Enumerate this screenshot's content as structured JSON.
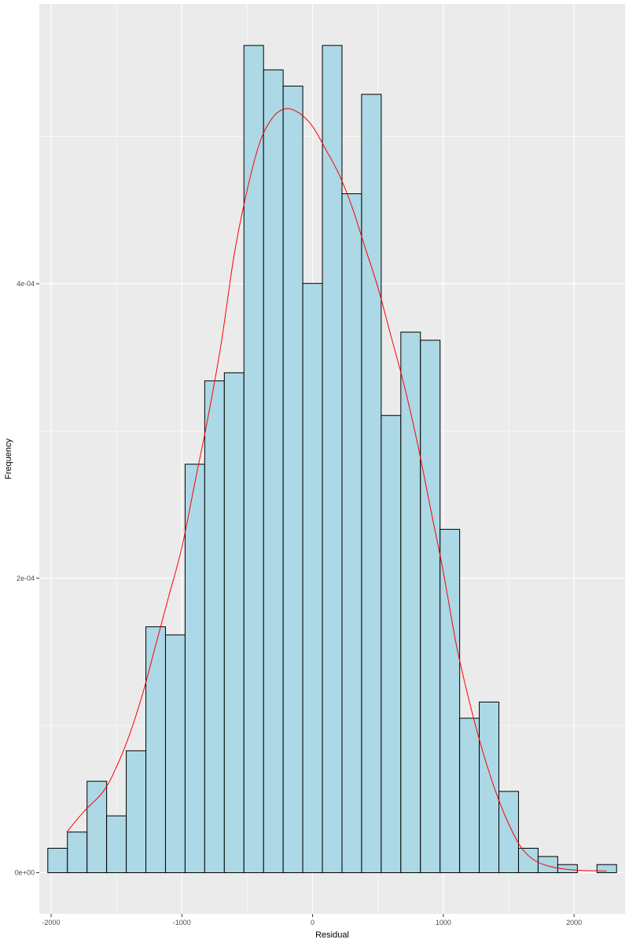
{
  "chart_data": {
    "type": "bar",
    "title": "",
    "xlabel": "Residual",
    "ylabel": "Frequency",
    "xlim": [
      -2090,
      2390
    ],
    "ylim": [
      -2.8e-05,
      0.00059
    ],
    "x_major_ticks": [
      -2000,
      -1000,
      0,
      1000,
      2000
    ],
    "x_tick_labels": [
      "-2000",
      "-1000",
      "0",
      "1000",
      "2000"
    ],
    "x_minor_ticks": [
      -1500,
      -500,
      500,
      1500
    ],
    "y_major_ticks": [
      0,
      0.0002,
      0.0004
    ],
    "y_tick_labels": [
      "0e+00",
      "2e-04",
      "4e-04"
    ],
    "y_minor_ticks": [
      0.0001,
      0.0003,
      0.0005
    ],
    "grid": true,
    "bin_width": 150,
    "bins": [
      {
        "x": -1950,
        "density": 1.66e-05
      },
      {
        "x": -1800,
        "density": 2.76e-05
      },
      {
        "x": -1650,
        "density": 6.21e-05
      },
      {
        "x": -1500,
        "density": 3.86e-05
      },
      {
        "x": -1350,
        "density": 8.28e-05
      },
      {
        "x": -1200,
        "density": 0.000167
      },
      {
        "x": -1050,
        "density": 0.0001615
      },
      {
        "x": -900,
        "density": 0.0002774
      },
      {
        "x": -750,
        "density": 0.000334
      },
      {
        "x": -600,
        "density": 0.0003395
      },
      {
        "x": -450,
        "density": 0.0005618
      },
      {
        "x": -300,
        "density": 0.0005452
      },
      {
        "x": -150,
        "density": 0.0005342
      },
      {
        "x": 0,
        "density": 0.0004002
      },
      {
        "x": 150,
        "density": 0.0005618
      },
      {
        "x": 300,
        "density": 0.0004611
      },
      {
        "x": 450,
        "density": 0.0005286
      },
      {
        "x": 600,
        "density": 0.0003105
      },
      {
        "x": 750,
        "density": 0.0003671
      },
      {
        "x": 900,
        "density": 0.0003616
      },
      {
        "x": 1050,
        "density": 0.0002332
      },
      {
        "x": 1200,
        "density": 0.0001049
      },
      {
        "x": 1350,
        "density": 0.0001159
      },
      {
        "x": 1500,
        "density": 5.52e-05
      },
      {
        "x": 1650,
        "density": 1.66e-05
      },
      {
        "x": 1800,
        "density": 1.1e-05
      },
      {
        "x": 1950,
        "density": 5.5e-06
      },
      {
        "x": 2100,
        "density": 0.0
      },
      {
        "x": 2250,
        "density": 5.5e-06
      }
    ],
    "density_curve": {
      "color": "#ff0000",
      "x": [
        -1880,
        -1750,
        -1600,
        -1500,
        -1400,
        -1300,
        -1200,
        -1100,
        -1000,
        -900,
        -800,
        -700,
        -600,
        -500,
        -400,
        -300,
        -200,
        -100,
        0,
        100,
        200,
        300,
        400,
        500,
        600,
        700,
        800,
        900,
        1000,
        1100,
        1200,
        1300,
        1400,
        1500,
        1600,
        1700,
        1800,
        1900,
        2000,
        2100,
        2250
      ],
      "y": [
        2.76e-05,
        4.14e-05,
        5.52e-05,
        7.18e-05,
        9.38e-05,
        0.0001214,
        0.0001545,
        0.0001877,
        0.0002208,
        0.000265,
        0.0003092,
        0.0003588,
        0.0004195,
        0.0004637,
        0.0004968,
        0.0005134,
        0.0005189,
        0.0005157,
        0.0005068,
        0.0004913,
        0.0004747,
        0.0004526,
        0.000425,
        0.0003974,
        0.0003643,
        0.0003312,
        0.0002925,
        0.0002484,
        0.0002042,
        0.0001545,
        0.0001159,
        8.28e-05,
        5.52e-05,
        3.31e-05,
        1.66e-05,
        8.3e-06,
        4.6e-06,
        2.8e-06,
        1.8e-06,
        1.4e-06,
        1.1e-06
      ]
    },
    "colors": {
      "panel_background": "#ebebeb",
      "grid_major": "#ffffff",
      "bar_fill": "#add8e6",
      "bar_outline": "#000000",
      "curve": "#ff0000",
      "tick_text": "#4d4d4d",
      "axis_title": "#000000"
    }
  }
}
